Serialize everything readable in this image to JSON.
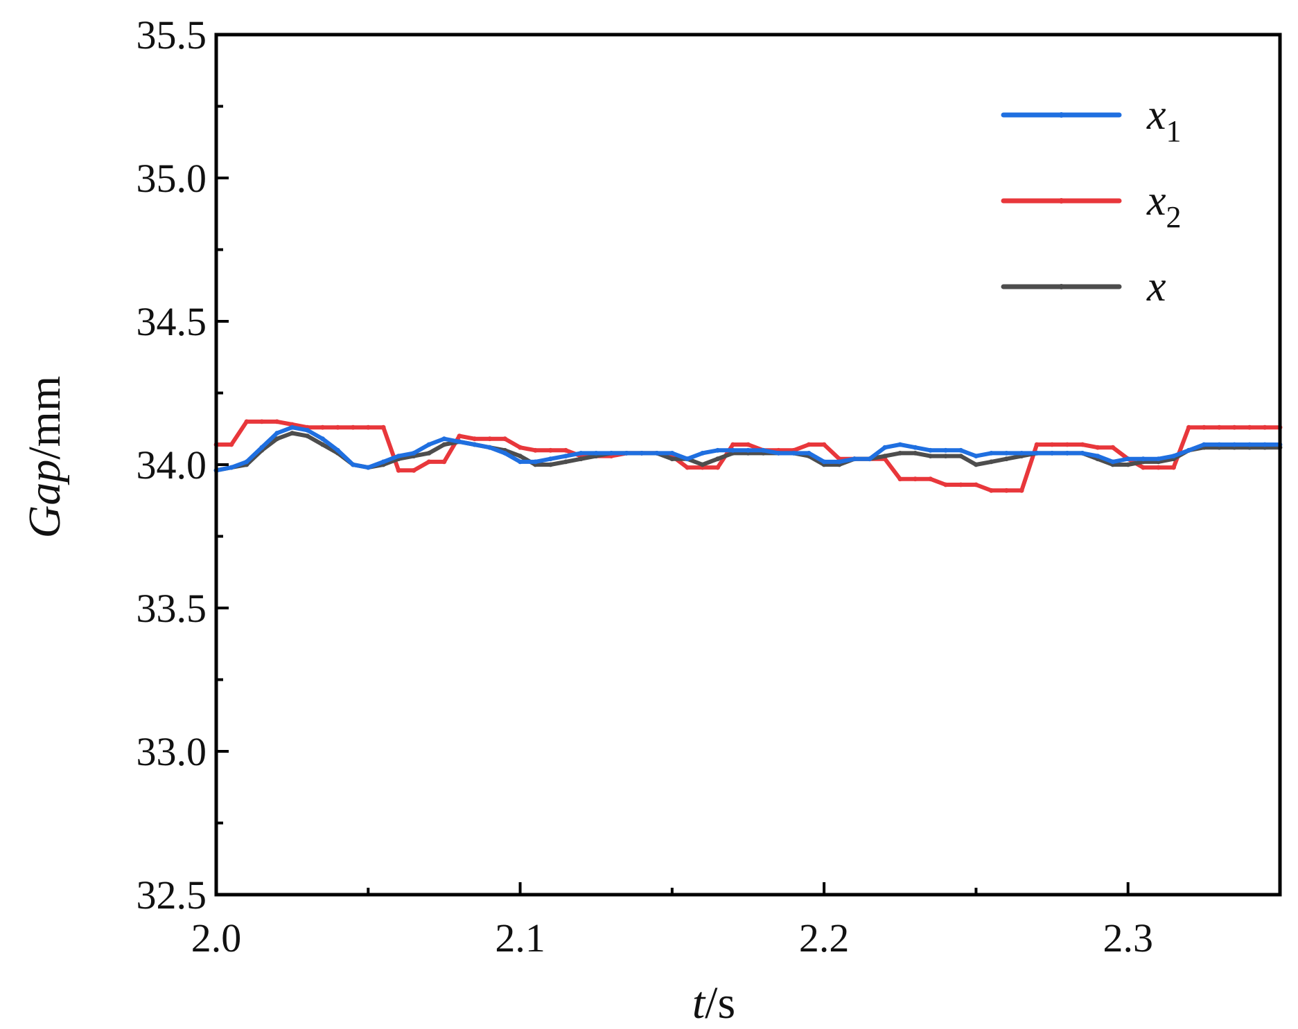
{
  "chart_data": {
    "type": "line",
    "title": "",
    "xlabel": {
      "var": "t",
      "unit": "/s"
    },
    "ylabel": {
      "var": "Gap",
      "unit": "/mm"
    },
    "xlim": [
      2.0,
      2.35
    ],
    "ylim": [
      32.5,
      35.5
    ],
    "xticks": [
      "2.0",
      "2.1",
      "2.2",
      "2.3"
    ],
    "yticks": [
      "32.5",
      "33.0",
      "33.5",
      "34.0",
      "34.5",
      "35.0",
      "35.5"
    ],
    "grid": false,
    "legend_position": "top-right",
    "x": [
      2.0,
      2.005,
      2.01,
      2.015,
      2.02,
      2.025,
      2.03,
      2.035,
      2.04,
      2.045,
      2.05,
      2.055,
      2.06,
      2.065,
      2.07,
      2.075,
      2.08,
      2.085,
      2.09,
      2.095,
      2.1,
      2.105,
      2.11,
      2.115,
      2.12,
      2.125,
      2.13,
      2.135,
      2.14,
      2.145,
      2.15,
      2.155,
      2.16,
      2.165,
      2.17,
      2.175,
      2.18,
      2.185,
      2.19,
      2.195,
      2.2,
      2.205,
      2.21,
      2.215,
      2.22,
      2.225,
      2.23,
      2.235,
      2.24,
      2.245,
      2.25,
      2.255,
      2.26,
      2.265,
      2.27,
      2.275,
      2.28,
      2.285,
      2.29,
      2.295,
      2.3,
      2.305,
      2.31,
      2.315,
      2.32,
      2.325,
      2.33,
      2.335,
      2.34,
      2.345,
      2.35
    ],
    "series": [
      {
        "name": "x",
        "name_sub": "2",
        "color": "#e8373b",
        "values": [
          34.07,
          34.07,
          34.15,
          34.15,
          34.15,
          34.14,
          34.13,
          34.13,
          34.13,
          34.13,
          34.13,
          34.13,
          33.98,
          33.98,
          34.01,
          34.01,
          34.1,
          34.09,
          34.09,
          34.09,
          34.06,
          34.05,
          34.05,
          34.05,
          34.03,
          34.03,
          34.03,
          34.04,
          34.04,
          34.04,
          34.03,
          33.99,
          33.99,
          33.99,
          34.07,
          34.07,
          34.05,
          34.05,
          34.05,
          34.07,
          34.07,
          34.02,
          34.02,
          34.02,
          34.02,
          33.95,
          33.95,
          33.95,
          33.93,
          33.93,
          33.93,
          33.91,
          33.91,
          33.91,
          34.07,
          34.07,
          34.07,
          34.07,
          34.06,
          34.06,
          34.02,
          33.99,
          33.99,
          33.99,
          34.13,
          34.13,
          34.13,
          34.13,
          34.13,
          34.13,
          34.13
        ]
      },
      {
        "name": "x",
        "name_sub": "",
        "color": "#4d4d4d",
        "values": [
          33.98,
          33.99,
          34.0,
          34.05,
          34.09,
          34.11,
          34.1,
          34.07,
          34.04,
          34.0,
          33.99,
          34.0,
          34.02,
          34.03,
          34.04,
          34.07,
          34.08,
          34.07,
          34.06,
          34.05,
          34.03,
          34.0,
          34.0,
          34.01,
          34.02,
          34.03,
          34.04,
          34.04,
          34.04,
          34.04,
          34.02,
          34.02,
          34.0,
          34.02,
          34.04,
          34.04,
          34.04,
          34.04,
          34.04,
          34.03,
          34.0,
          34.0,
          34.02,
          34.02,
          34.03,
          34.04,
          34.04,
          34.03,
          34.03,
          34.03,
          34.0,
          34.01,
          34.02,
          34.03,
          34.04,
          34.04,
          34.04,
          34.04,
          34.02,
          34.0,
          34.0,
          34.01,
          34.01,
          34.02,
          34.05,
          34.06,
          34.06,
          34.06,
          34.06,
          34.06,
          34.06
        ]
      },
      {
        "name": "x",
        "name_sub": "1",
        "color": "#1f6fe0",
        "values": [
          33.98,
          33.99,
          34.01,
          34.06,
          34.11,
          34.13,
          34.12,
          34.09,
          34.05,
          34.0,
          33.99,
          34.01,
          34.03,
          34.04,
          34.07,
          34.09,
          34.08,
          34.07,
          34.06,
          34.04,
          34.01,
          34.01,
          34.02,
          34.03,
          34.04,
          34.04,
          34.04,
          34.04,
          34.04,
          34.04,
          34.04,
          34.02,
          34.04,
          34.05,
          34.05,
          34.05,
          34.05,
          34.04,
          34.04,
          34.04,
          34.01,
          34.01,
          34.02,
          34.02,
          34.06,
          34.07,
          34.06,
          34.05,
          34.05,
          34.05,
          34.03,
          34.04,
          34.04,
          34.04,
          34.04,
          34.04,
          34.04,
          34.04,
          34.03,
          34.01,
          34.02,
          34.02,
          34.02,
          34.03,
          34.05,
          34.07,
          34.07,
          34.07,
          34.07,
          34.07,
          34.07
        ]
      }
    ],
    "legend_order": [
      2,
      0,
      1
    ]
  }
}
